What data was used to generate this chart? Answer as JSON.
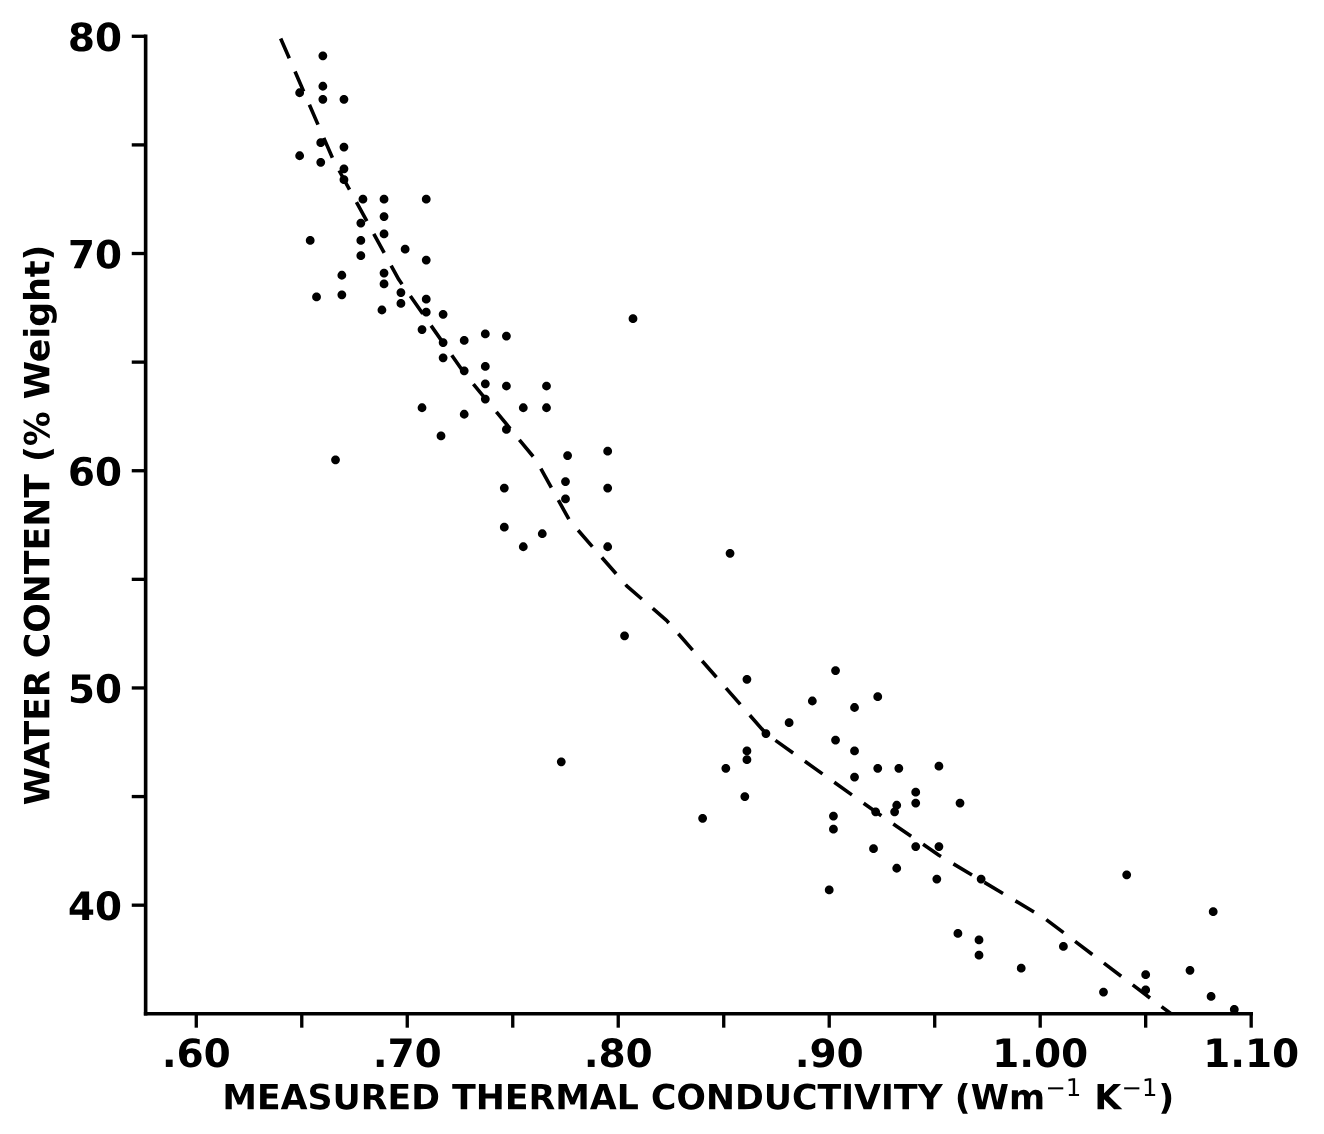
{
  "chart_data": {
    "type": "scatter",
    "xlabel": "MEASURED THERMAL CONDUCTIVITY (Wm$^{−1}$ K$^{−1}$)",
    "ylabel": "WATER CONTENT (% Weight)",
    "xlim": [
      0.576,
      1.1
    ],
    "ylim": [
      35,
      80
    ],
    "xticks": [
      {
        "value": 0.6,
        "label": ".60"
      },
      {
        "value": 0.65,
        "label": null
      },
      {
        "value": 0.7,
        "label": ".70"
      },
      {
        "value": 0.75,
        "label": null
      },
      {
        "value": 0.8,
        "label": ".80"
      },
      {
        "value": 0.85,
        "label": null
      },
      {
        "value": 0.9,
        "label": ".90"
      },
      {
        "value": 0.95,
        "label": null
      },
      {
        "value": 1.0,
        "label": "1.00"
      },
      {
        "value": 1.05,
        "label": null
      },
      {
        "value": 1.1,
        "label": "1.10"
      }
    ],
    "yticks": [
      40,
      {
        "value": 45,
        "label": null
      },
      50,
      {
        "value": 55,
        "label": null
      },
      60,
      {
        "value": 65,
        "label": null
      },
      70,
      {
        "value": 75,
        "label": null
      },
      80
    ],
    "grid": false,
    "legend": false,
    "series": [
      {
        "color": "#000000",
        "marker": "circle",
        "x": [
          0.66,
          0.66,
          0.649,
          0.66,
          0.67,
          0.659,
          0.649,
          0.659,
          0.67,
          0.67,
          0.67,
          0.679,
          0.689,
          0.709,
          0.689,
          0.678,
          0.689,
          0.654,
          0.678,
          0.678,
          0.699,
          0.709,
          0.689,
          0.689,
          0.669,
          0.669,
          0.657,
          0.697,
          0.697,
          0.688,
          0.709,
          0.709,
          0.717,
          0.707,
          0.717,
          0.727,
          0.737,
          0.747,
          0.717,
          0.737,
          0.727,
          0.737,
          0.747,
          0.737,
          0.766,
          0.766,
          0.755,
          0.707,
          0.727,
          0.747,
          0.716,
          0.666,
          0.776,
          0.795,
          0.746,
          0.775,
          0.775,
          0.795,
          0.746,
          0.764,
          0.755,
          0.795,
          0.807,
          0.803,
          0.773,
          0.853,
          0.861,
          0.903,
          0.892,
          0.912,
          0.923,
          0.881,
          0.87,
          0.903,
          0.912,
          0.861,
          0.861,
          0.851,
          0.912,
          0.923,
          0.933,
          0.952,
          0.941,
          0.941,
          0.932,
          0.931,
          0.962,
          0.86,
          0.84,
          0.902,
          0.902,
          0.922,
          0.941,
          0.952,
          0.921,
          0.932,
          0.951,
          0.972,
          0.9,
          1.041,
          0.961,
          0.971,
          0.971,
          0.991,
          1.011,
          1.082,
          1.03,
          1.05,
          1.05,
          1.071,
          1.081,
          1.092
        ],
        "values": [
          79.1,
          77.7,
          77.4,
          77.1,
          77.1,
          75.1,
          74.5,
          74.2,
          74.9,
          73.9,
          73.4,
          72.5,
          72.5,
          72.5,
          71.7,
          71.4,
          70.9,
          70.6,
          70.6,
          69.9,
          70.2,
          69.7,
          69.1,
          68.6,
          69.0,
          68.1,
          68.0,
          68.2,
          67.7,
          67.4,
          67.9,
          67.3,
          67.2,
          66.5,
          65.9,
          66.0,
          66.3,
          66.2,
          65.2,
          64.8,
          64.6,
          64.0,
          63.9,
          63.3,
          63.9,
          62.9,
          62.9,
          62.9,
          62.6,
          61.9,
          61.6,
          60.5,
          60.7,
          60.9,
          59.2,
          59.5,
          58.7,
          59.2,
          57.4,
          57.1,
          56.5,
          56.5,
          67.0,
          52.4,
          46.6,
          56.2,
          50.4,
          50.8,
          49.4,
          49.1,
          49.6,
          48.4,
          47.9,
          47.6,
          47.1,
          47.1,
          46.7,
          46.3,
          45.9,
          46.3,
          46.3,
          46.4,
          45.2,
          44.7,
          44.6,
          44.3,
          44.7,
          45.0,
          44.0,
          44.1,
          43.5,
          44.3,
          42.7,
          42.7,
          42.6,
          41.7,
          41.2,
          41.2,
          40.7,
          41.4,
          38.7,
          38.4,
          37.7,
          37.1,
          38.1,
          39.7,
          36.0,
          36.8,
          36.1,
          37.0,
          35.8,
          35.2
        ]
      },
      {
        "type": "line",
        "color": "#000000",
        "marker": "none",
        "line_style": "dashed",
        "x": [
          0.64,
          0.665,
          0.696,
          0.727,
          0.761,
          0.777,
          0.804,
          0.823,
          0.87,
          0.922,
          0.952,
          1.002,
          1.062
        ],
        "values": [
          79.9,
          74.3,
          68.8,
          64.5,
          60.5,
          57.7,
          54.7,
          53.1,
          47.9,
          44.3,
          42.3,
          39.4,
          35.0
        ]
      }
    ]
  }
}
